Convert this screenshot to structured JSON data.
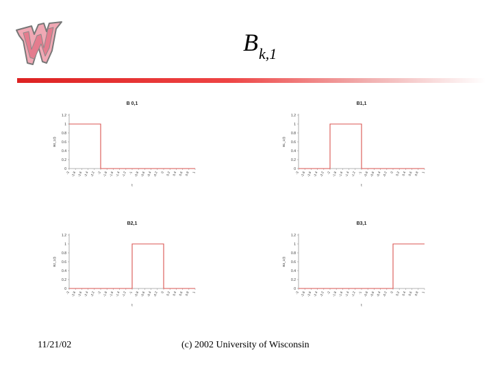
{
  "slide": {
    "title_main": "B",
    "title_sub": "k,1",
    "footer_date": "11/21/02",
    "footer_copyright": "(c) 2002 University of Wisconsin"
  },
  "colors": {
    "accent": "#d22222",
    "curve": "#d9534f",
    "axis": "#9a9a9a"
  },
  "chart_data": [
    {
      "type": "line",
      "title": "B 0,1",
      "xlabel": "t",
      "ylabel": "B0_1(t)",
      "x_ticks": [
        "-3",
        "-2.8",
        "-2.6",
        "-2.4",
        "-2.2",
        "-2",
        "-1.8",
        "-1.6",
        "-1.4",
        "-1.2",
        "-1",
        "-0.8",
        "-0.6",
        "-0.4",
        "-0.2",
        "0",
        "0.2",
        "0.4",
        "0.6",
        "0.8",
        "1"
      ],
      "y_ticks": [
        "0",
        "0.2",
        "0.4",
        "0.6",
        "0.8",
        "1",
        "1.2"
      ],
      "xlim": [
        -3,
        1
      ],
      "ylim": [
        0,
        1.2
      ],
      "grid": false,
      "series": [
        {
          "x": [
            -3,
            -2,
            -2,
            1
          ],
          "y": [
            1,
            1,
            0,
            0
          ]
        }
      ]
    },
    {
      "type": "line",
      "title": "B1,1",
      "xlabel": "t",
      "ylabel": "B1_1(t)",
      "x_ticks": [
        "-3",
        "-2.8",
        "-2.6",
        "-2.4",
        "-2.2",
        "-2",
        "-1.8",
        "-1.6",
        "-1.4",
        "-1.2",
        "-1",
        "-0.8",
        "-0.6",
        "-0.4",
        "-0.2",
        "0",
        "0.2",
        "0.4",
        "0.6",
        "0.8",
        "1"
      ],
      "y_ticks": [
        "0",
        "0.2",
        "0.4",
        "0.6",
        "0.8",
        "1",
        "1.2"
      ],
      "xlim": [
        -3,
        1
      ],
      "ylim": [
        0,
        1.2
      ],
      "grid": false,
      "series": [
        {
          "x": [
            -3,
            -2,
            -2,
            -1,
            -1,
            1
          ],
          "y": [
            0,
            0,
            1,
            1,
            0,
            0
          ]
        }
      ]
    },
    {
      "type": "line",
      "title": "B2,1",
      "xlabel": "t",
      "ylabel": "B2_1(t)",
      "x_ticks": [
        "-3",
        "-2.8",
        "-2.6",
        "-2.4",
        "-2.2",
        "-2",
        "-1.8",
        "-1.6",
        "-1.4",
        "-1.2",
        "-1",
        "-0.8",
        "-0.6",
        "-0.4",
        "-0.2",
        "0",
        "0.2",
        "0.4",
        "0.6",
        "0.8",
        "1"
      ],
      "y_ticks": [
        "0",
        "0.2",
        "0.4",
        "0.6",
        "0.8",
        "1",
        "1.2"
      ],
      "xlim": [
        -3,
        1
      ],
      "ylim": [
        0,
        1.2
      ],
      "grid": false,
      "series": [
        {
          "x": [
            -3,
            -1,
            -1,
            0,
            0,
            1
          ],
          "y": [
            0,
            0,
            1,
            1,
            0,
            0
          ]
        }
      ]
    },
    {
      "type": "line",
      "title": "B3,1",
      "xlabel": "t",
      "ylabel": "B3_1(t)",
      "x_ticks": [
        "-3",
        "-2.8",
        "-2.6",
        "-2.4",
        "-2.2",
        "-2",
        "-1.8",
        "-1.6",
        "-1.4",
        "-1.2",
        "-1",
        "-0.8",
        "-0.6",
        "-0.4",
        "-0.2",
        "0",
        "0.2",
        "0.4",
        "0.6",
        "0.8",
        "1"
      ],
      "y_ticks": [
        "0",
        "0.2",
        "0.4",
        "0.6",
        "0.8",
        "1",
        "1.2"
      ],
      "xlim": [
        -3,
        1
      ],
      "ylim": [
        0,
        1.2
      ],
      "grid": false,
      "series": [
        {
          "x": [
            -3,
            0,
            0,
            1
          ],
          "y": [
            0,
            0,
            1,
            1
          ]
        }
      ]
    }
  ]
}
